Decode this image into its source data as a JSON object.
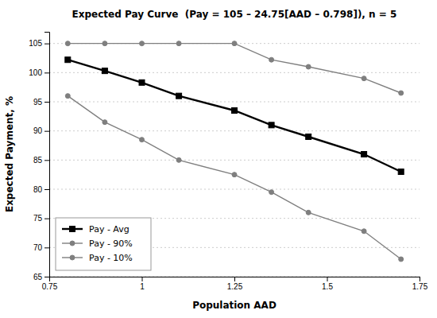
{
  "chart_data": {
    "type": "line",
    "title": "Expected Pay Curve  (Pay = 105 – 24.75[AAD – 0.798]), n = 5",
    "xlabel": "Population AAD",
    "ylabel": "Expected Payment, %",
    "x": [
      0.8,
      0.9,
      1.0,
      1.1,
      1.25,
      1.35,
      1.45,
      1.6,
      1.7
    ],
    "series": [
      {
        "name": "Pay - Avg",
        "color": "#000000",
        "marker": "square",
        "values": [
          102.2,
          100.3,
          98.3,
          96.0,
          93.5,
          91.0,
          89.0,
          86.0,
          83.0
        ]
      },
      {
        "name": "Pay - 90%",
        "color": "#7f7f7f",
        "marker": "circle",
        "values": [
          105.0,
          105.0,
          105.0,
          105.0,
          105.0,
          102.2,
          101.0,
          99.0,
          96.5
        ]
      },
      {
        "name": "Pay - 10%",
        "color": "#7f7f7f",
        "marker": "circle",
        "values": [
          96.0,
          91.5,
          88.5,
          85.0,
          82.5,
          79.5,
          76.0,
          72.8,
          68.0
        ]
      }
    ],
    "xlim": [
      0.75,
      1.75
    ],
    "ylim": [
      65,
      107
    ],
    "xticks": [
      0.75,
      1,
      1.25,
      1.5,
      1.75
    ],
    "yticks": [
      65,
      70,
      75,
      80,
      85,
      90,
      95,
      100,
      105
    ],
    "grid": true,
    "legend": "lower left"
  }
}
